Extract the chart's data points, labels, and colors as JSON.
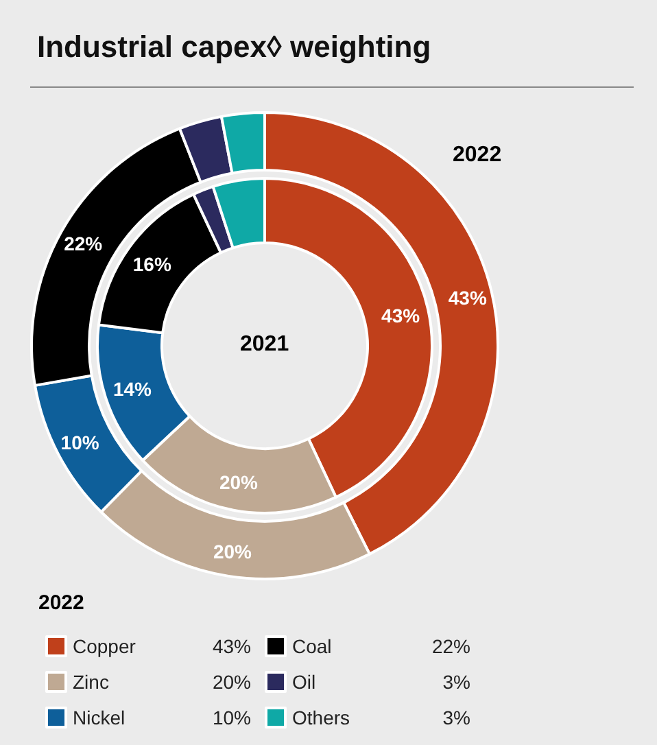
{
  "chart_data": {
    "type": "donut",
    "title": "Industrial capex◊ weighting",
    "legend_title": "2022",
    "legend": "bottom left",
    "categories": [
      "Copper",
      "Zinc",
      "Nickel",
      "Coal",
      "Oil",
      "Others"
    ],
    "series": [
      {
        "name": "2022",
        "colors": [
          "#c0401b",
          "#bfa993",
          "#0e5f9a",
          "#000000",
          "#2b2a5e",
          "#0fa9a6"
        ],
        "values": [
          43,
          20,
          10,
          22,
          3,
          3
        ],
        "value_labels": [
          "43%",
          "20%",
          "10%",
          "22%",
          "3%",
          "3%"
        ]
      },
      {
        "name": "2021",
        "colors": [
          "#c0401b",
          "#bfa993",
          "#0e5f9a",
          "#000000",
          "#2b2a5e",
          "#0fa9a6"
        ],
        "values": [
          43,
          20,
          14,
          16,
          2,
          5
        ],
        "value_labels": [
          "43%",
          "20%",
          "14%",
          "16%",
          null,
          null
        ]
      }
    ]
  }
}
